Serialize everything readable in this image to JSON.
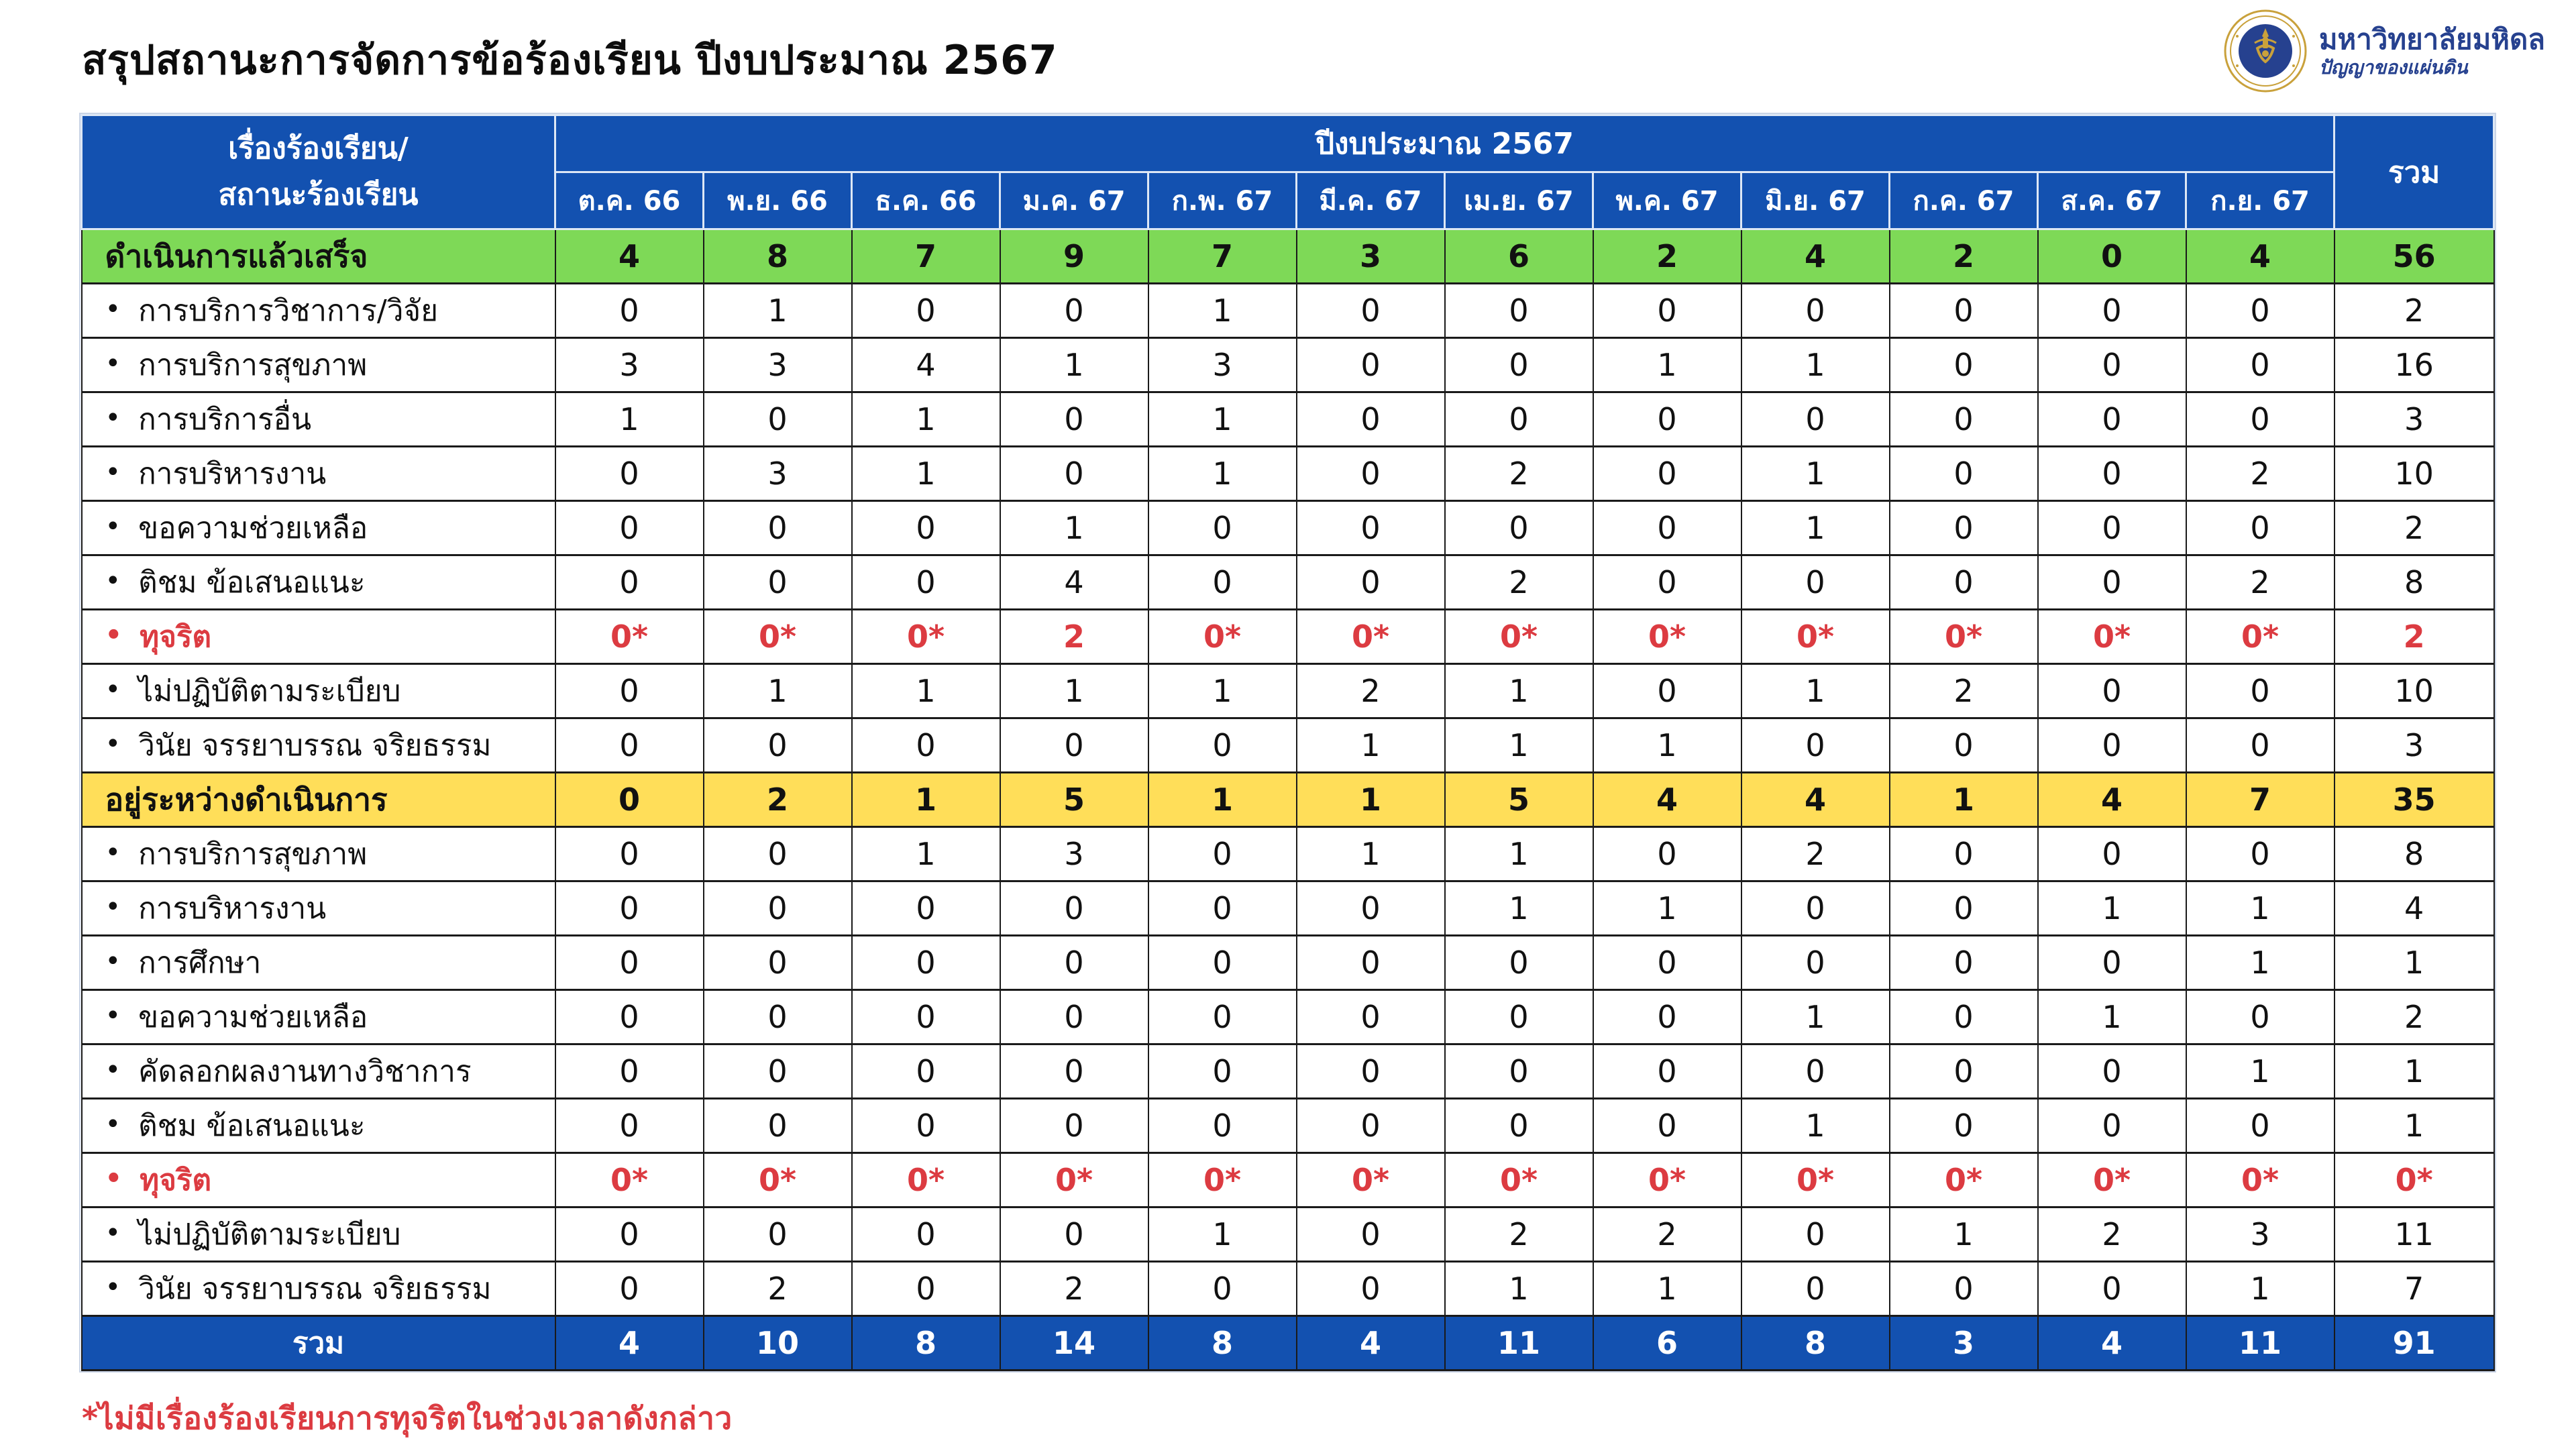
{
  "page": {
    "title": "สรุปสถานะการจัดการข้อร้องเรียน ปีงบประมาณ  2567",
    "footnote": "*ไม่มีเรื่องร้องเรียนการทุจริตในช่วงเวลาดังกล่าว"
  },
  "logo": {
    "org_name": "มหาวิทยาลัยมหิดล",
    "tagline": "ปัญญาของแผ่นดิน"
  },
  "colors": {
    "header_blue": "#1351B0",
    "section_green": "#7ED957",
    "section_yellow": "#FFDE59",
    "alert_red": "#DC3B41",
    "logo_navy": "#26418F",
    "logo_gold": "#C9A13B"
  },
  "table": {
    "corner_line1": "เรื่องร้องเรียน/",
    "corner_line2": "สถานะร้องเรียน",
    "year_header": "ปีงบประมาณ 2567",
    "total_header": "รวม",
    "months": [
      "ต.ค. 66",
      "พ.ย. 66",
      "ธ.ค. 66",
      "ม.ค. 67",
      "ก.พ. 67",
      "มี.ค. 67",
      "เม.ย. 67",
      "พ.ค. 67",
      "มิ.ย. 67",
      "ก.ค. 67",
      "ส.ค. 67",
      "ก.ย. 67"
    ],
    "rows": [
      {
        "label": "ดำเนินการแล้วเสร็จ",
        "type": "section-green",
        "values": [
          "4",
          "8",
          "7",
          "9",
          "7",
          "3",
          "6",
          "2",
          "4",
          "2",
          "0",
          "4"
        ],
        "total": "56"
      },
      {
        "label": "การบริการวิชาการ/วิจัย",
        "type": "item",
        "values": [
          "0",
          "1",
          "0",
          "0",
          "1",
          "0",
          "0",
          "0",
          "0",
          "0",
          "0",
          "0"
        ],
        "total": "2"
      },
      {
        "label": "การบริการสุขภาพ",
        "type": "item",
        "values": [
          "3",
          "3",
          "4",
          "1",
          "3",
          "0",
          "0",
          "1",
          "1",
          "0",
          "0",
          "0"
        ],
        "total": "16"
      },
      {
        "label": "การบริการอื่น",
        "type": "item",
        "values": [
          "1",
          "0",
          "1",
          "0",
          "1",
          "0",
          "0",
          "0",
          "0",
          "0",
          "0",
          "0"
        ],
        "total": "3"
      },
      {
        "label": "การบริหารงาน",
        "type": "item",
        "values": [
          "0",
          "3",
          "1",
          "0",
          "1",
          "0",
          "2",
          "0",
          "1",
          "0",
          "0",
          "2"
        ],
        "total": "10"
      },
      {
        "label": "ขอความช่วยเหลือ",
        "type": "item",
        "values": [
          "0",
          "0",
          "0",
          "1",
          "0",
          "0",
          "0",
          "0",
          "1",
          "0",
          "0",
          "0"
        ],
        "total": "2"
      },
      {
        "label": "ติชม ข้อเสนอแนะ",
        "type": "item",
        "values": [
          "0",
          "0",
          "0",
          "4",
          "0",
          "0",
          "2",
          "0",
          "0",
          "0",
          "0",
          "2"
        ],
        "total": "8"
      },
      {
        "label": "ทุจริต",
        "type": "item-red",
        "values": [
          "0*",
          "0*",
          "0*",
          "2",
          "0*",
          "0*",
          "0*",
          "0*",
          "0*",
          "0*",
          "0*",
          "0*"
        ],
        "total": "2"
      },
      {
        "label": "ไม่ปฏิบัติตามระเบียบ",
        "type": "item",
        "values": [
          "0",
          "1",
          "1",
          "1",
          "1",
          "2",
          "1",
          "0",
          "1",
          "2",
          "0",
          "0"
        ],
        "total": "10"
      },
      {
        "label": "วินัย จรรยาบรรณ จริยธรรม",
        "type": "item",
        "values": [
          "0",
          "0",
          "0",
          "0",
          "0",
          "1",
          "1",
          "1",
          "0",
          "0",
          "0",
          "0"
        ],
        "total": "3"
      },
      {
        "label": "อยู่ระหว่างดำเนินการ",
        "type": "section-yellow",
        "values": [
          "0",
          "2",
          "1",
          "5",
          "1",
          "1",
          "5",
          "4",
          "4",
          "1",
          "4",
          "7"
        ],
        "total": "35"
      },
      {
        "label": "การบริการสุขภาพ",
        "type": "item",
        "values": [
          "0",
          "0",
          "1",
          "3",
          "0",
          "1",
          "1",
          "0",
          "2",
          "0",
          "0",
          "0"
        ],
        "total": "8"
      },
      {
        "label": "การบริหารงาน",
        "type": "item",
        "values": [
          "0",
          "0",
          "0",
          "0",
          "0",
          "0",
          "1",
          "1",
          "0",
          "0",
          "1",
          "1"
        ],
        "total": "4"
      },
      {
        "label": "การศึกษา",
        "type": "item",
        "values": [
          "0",
          "0",
          "0",
          "0",
          "0",
          "0",
          "0",
          "0",
          "0",
          "0",
          "0",
          "1"
        ],
        "total": "1"
      },
      {
        "label": "ขอความช่วยเหลือ",
        "type": "item",
        "values": [
          "0",
          "0",
          "0",
          "0",
          "0",
          "0",
          "0",
          "0",
          "1",
          "0",
          "1",
          "0"
        ],
        "total": "2"
      },
      {
        "label": "คัดลอกผลงานทางวิชาการ",
        "type": "item",
        "values": [
          "0",
          "0",
          "0",
          "0",
          "0",
          "0",
          "0",
          "0",
          "0",
          "0",
          "0",
          "1"
        ],
        "total": "1"
      },
      {
        "label": "ติชม ข้อเสนอแนะ",
        "type": "item",
        "values": [
          "0",
          "0",
          "0",
          "0",
          "0",
          "0",
          "0",
          "0",
          "1",
          "0",
          "0",
          "0"
        ],
        "total": "1"
      },
      {
        "label": "ทุจริต",
        "type": "item-red",
        "values": [
          "0*",
          "0*",
          "0*",
          "0*",
          "0*",
          "0*",
          "0*",
          "0*",
          "0*",
          "0*",
          "0*",
          "0*"
        ],
        "total": "0*"
      },
      {
        "label": "ไม่ปฏิบัติตามระเบียบ",
        "type": "item",
        "values": [
          "0",
          "0",
          "0",
          "0",
          "1",
          "0",
          "2",
          "2",
          "0",
          "1",
          "2",
          "3"
        ],
        "total": "11"
      },
      {
        "label": "วินัย จรรยาบรรณ จริยธรรม",
        "type": "item",
        "values": [
          "0",
          "2",
          "0",
          "2",
          "0",
          "0",
          "1",
          "1",
          "0",
          "0",
          "0",
          "1"
        ],
        "total": "7"
      },
      {
        "label": "รวม",
        "type": "total-blue",
        "values": [
          "4",
          "10",
          "8",
          "14",
          "8",
          "4",
          "11",
          "6",
          "8",
          "3",
          "4",
          "11"
        ],
        "total": "91"
      }
    ]
  }
}
